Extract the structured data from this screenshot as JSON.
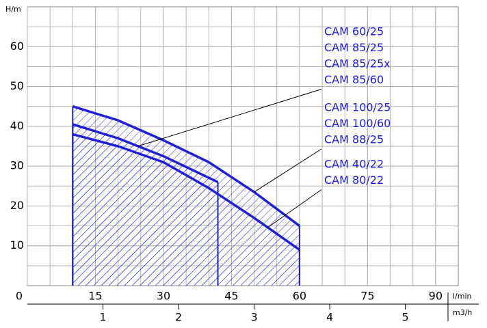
{
  "chart_data": {
    "type": "line",
    "y_label": "H/m",
    "x_label": "l/min",
    "x2_label": "m3/h",
    "xlim": [
      0,
      95
    ],
    "xticks": [
      0,
      15,
      30,
      45,
      60,
      75,
      90
    ],
    "x2lim": [
      0,
      5.7
    ],
    "x2ticks": [
      1,
      2,
      3,
      4,
      5
    ],
    "ylim": [
      0,
      70
    ],
    "yticks": [
      10,
      20,
      30,
      40,
      50,
      60
    ],
    "grid": true,
    "hatched": true,
    "series": [
      {
        "labels": [
          "CAM 100/25",
          "CAM 100/60",
          "CAM 88/25"
        ],
        "color": "#1f1fd6",
        "x": [
          10,
          20,
          30,
          40,
          50,
          60
        ],
        "values": [
          45,
          41.5,
          36.5,
          31,
          23.5,
          15
        ]
      },
      {
        "labels": [
          "CAM 60/25",
          "CAM 85/25",
          "CAM 85/25x",
          "CAM 85/60"
        ],
        "color": "#1f1fd6",
        "x": [
          10,
          20,
          30,
          42
        ],
        "values": [
          40.5,
          37,
          32.5,
          26
        ]
      },
      {
        "labels": [
          "CAM 40/22",
          "CAM 80/22"
        ],
        "color": "#1f1fd6",
        "x": [
          10,
          20,
          30,
          40,
          50,
          60
        ],
        "values": [
          38,
          35,
          31,
          24.5,
          17,
          9
        ]
      }
    ]
  }
}
